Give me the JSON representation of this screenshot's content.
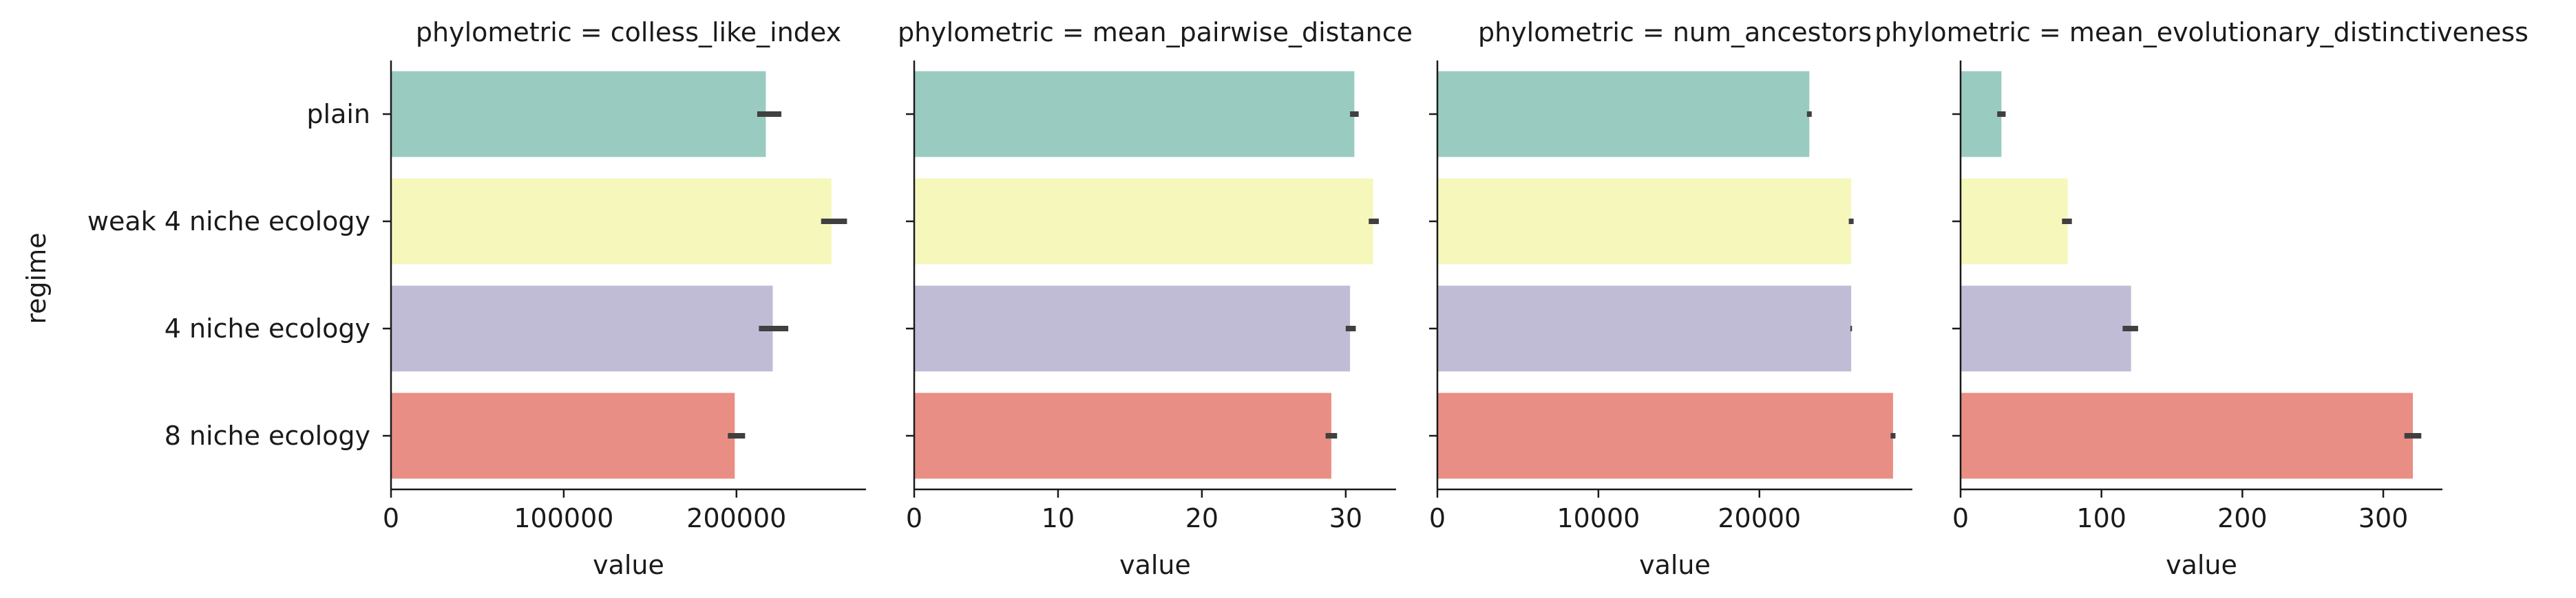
{
  "chart_data": {
    "type": "bar",
    "orientation": "horizontal",
    "ylabel": "regime",
    "xlabel": "value",
    "categories": [
      "plain",
      "weak 4 niche ecology",
      "4 niche ecology",
      "8 niche ecology"
    ],
    "colors": [
      "#99cbc1",
      "#f6f7bb",
      "#c1bcd6",
      "#e98e84"
    ],
    "error_bar_color": "#404040",
    "panels": [
      {
        "title": "phylometric = colless_like_index",
        "xlabel": "value",
        "xlim": [
          0,
          275000
        ],
        "xticks": [
          0,
          100000,
          200000
        ],
        "xtick_labels": [
          "0",
          "100000",
          "200000"
        ],
        "values": [
          217000,
          255000,
          221000,
          199000
        ],
        "ci": [
          [
            212000,
            226000
          ],
          [
            249000,
            264000
          ],
          [
            213000,
            230000
          ],
          [
            195000,
            205000
          ]
        ]
      },
      {
        "title": "phylometric = mean_pairwise_distance",
        "xlabel": "value",
        "xlim": [
          0,
          33.5
        ],
        "xticks": [
          0,
          10,
          20,
          30
        ],
        "xtick_labels": [
          "0",
          "10",
          "20",
          "30"
        ],
        "values": [
          30.6,
          31.9,
          30.3,
          29.0
        ],
        "ci": [
          [
            30.3,
            30.9
          ],
          [
            31.6,
            32.3
          ],
          [
            30.0,
            30.7
          ],
          [
            28.6,
            29.4
          ]
        ]
      },
      {
        "title": "phylometric = num_ancestors",
        "xlabel": "value",
        "xlim": [
          0,
          29500
        ],
        "xticks": [
          0,
          10000,
          20000
        ],
        "xtick_labels": [
          "0",
          "10000",
          "20000"
        ],
        "values": [
          23100,
          25700,
          25700,
          28300
        ],
        "ci": [
          [
            22950,
            23250
          ],
          [
            25550,
            25850
          ],
          [
            25650,
            25750
          ],
          [
            28150,
            28450
          ]
        ]
      },
      {
        "title": "phylometric = mean_evolutionary_distinctiveness",
        "xlabel": "value",
        "xlim": [
          0,
          342
        ],
        "xticks": [
          0,
          100,
          200,
          300
        ],
        "xtick_labels": [
          "0",
          "100",
          "200",
          "300"
        ],
        "values": [
          29,
          76,
          121,
          321
        ],
        "ci": [
          [
            26,
            32
          ],
          [
            72,
            79
          ],
          [
            115,
            126
          ],
          [
            315,
            327
          ]
        ]
      }
    ]
  }
}
